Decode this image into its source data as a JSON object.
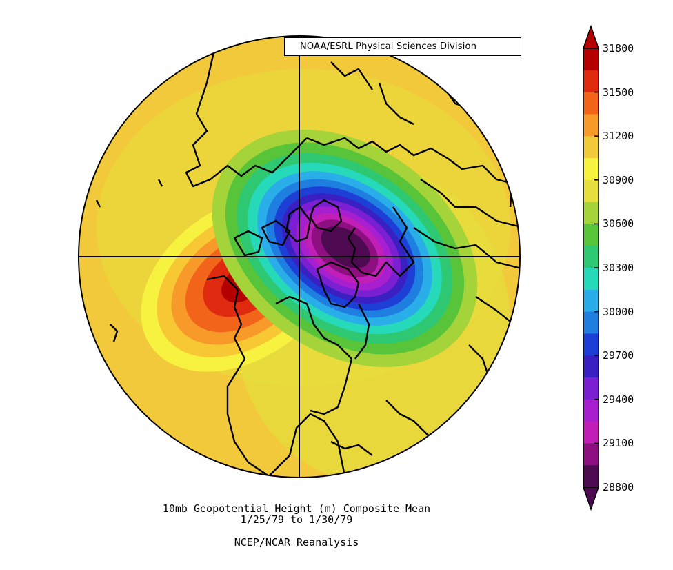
{
  "credit": "NOAA/ESRL Physical Sciences Division",
  "caption": {
    "line1": "10mb Geopotential Height (m) Composite Mean",
    "line2": "1/25/79  to 1/30/79",
    "line3": "NCEP/NCAR Reanalysis"
  },
  "colorbar": {
    "labels": [
      "31800",
      "31500",
      "31200",
      "30900",
      "30600",
      "30300",
      "30000",
      "29700",
      "29400",
      "29100",
      "28800"
    ],
    "colors": [
      "#b40000",
      "#e02a10",
      "#f2641a",
      "#f79a2a",
      "#f2c93a",
      "#f7f23f",
      "#e6de3c",
      "#a5d33a",
      "#58c43a",
      "#2ec873",
      "#26d9b8",
      "#2aaeea",
      "#1f7fe0",
      "#1d3fd6",
      "#3a1fc2",
      "#7a1fd1",
      "#a81fcf",
      "#c21fb9",
      "#8e1080",
      "#4e0a50"
    ]
  },
  "map": {
    "field_colors": {
      "background": "#f2c93a",
      "low_core": "#4e0a50",
      "high_core": "#d41e10"
    },
    "overlay": "coastlines and political boundaries, polar stereographic projection, Northern Hemisphere"
  }
}
